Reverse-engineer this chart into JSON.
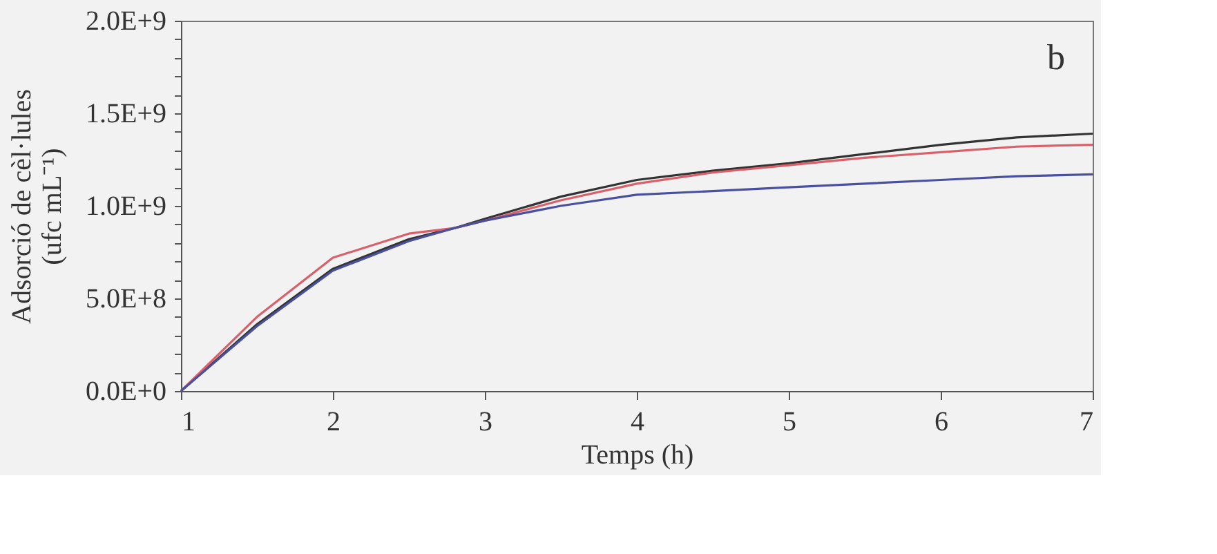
{
  "chart_data": {
    "type": "line",
    "xlabel": "Temps (h)",
    "ylabel": "Adsorció de cèl·lules\n(ufc mL⁻¹)",
    "x": [
      1,
      1.5,
      2,
      2.5,
      2.8,
      3,
      3.5,
      4,
      4.5,
      5,
      5.5,
      6,
      6.5,
      7
    ],
    "series": [
      {
        "color": "#333333",
        "values": [
          0,
          360000000,
          660000000,
          820000000,
          880000000,
          930000000,
          1050000000,
          1140000000,
          1190000000,
          1230000000,
          1280000000,
          1330000000,
          1370000000,
          1390000000
        ]
      },
      {
        "color": "#d9606a",
        "values": [
          0,
          400000000,
          720000000,
          850000000,
          880000000,
          920000000,
          1030000000,
          1120000000,
          1180000000,
          1220000000,
          1260000000,
          1290000000,
          1320000000,
          1330000000
        ]
      },
      {
        "color": "#4a50a0",
        "values": [
          0,
          350000000,
          650000000,
          810000000,
          880000000,
          920000000,
          1000000000,
          1060000000,
          1080000000,
          1100000000,
          1120000000,
          1140000000,
          1160000000,
          1170000000
        ]
      }
    ],
    "xlim": [
      1,
      7
    ],
    "xticks": [
      1,
      2,
      3,
      4,
      5,
      6,
      7
    ],
    "ylim": [
      0,
      2000000000
    ],
    "yticks": [
      {
        "value": 0,
        "label": "0.0E+0"
      },
      {
        "value": 100000000,
        "label": null
      },
      {
        "value": 200000000,
        "label": null
      },
      {
        "value": 300000000,
        "label": null
      },
      {
        "value": 400000000,
        "label": null
      },
      {
        "value": 500000000,
        "label": "5.0E+8"
      },
      {
        "value": 600000000,
        "label": null
      },
      {
        "value": 700000000,
        "label": null
      },
      {
        "value": 800000000,
        "label": null
      },
      {
        "value": 900000000,
        "label": null
      },
      {
        "value": 1000000000,
        "label": "1.0E+9"
      },
      {
        "value": 1100000000,
        "label": null
      },
      {
        "value": 1200000000,
        "label": null
      },
      {
        "value": 1300000000,
        "label": null
      },
      {
        "value": 1400000000,
        "label": null
      },
      {
        "value": 1500000000,
        "label": "1.5E+9"
      },
      {
        "value": 1600000000,
        "label": null
      },
      {
        "value": 1700000000,
        "label": null
      },
      {
        "value": 1800000000,
        "label": null
      },
      {
        "value": 1900000000,
        "label": null
      },
      {
        "value": 2000000000,
        "label": "2.0E+9"
      }
    ],
    "annotations": [
      "b"
    ],
    "grid": false,
    "legend": false,
    "marker": "none",
    "line_style": "solid"
  }
}
